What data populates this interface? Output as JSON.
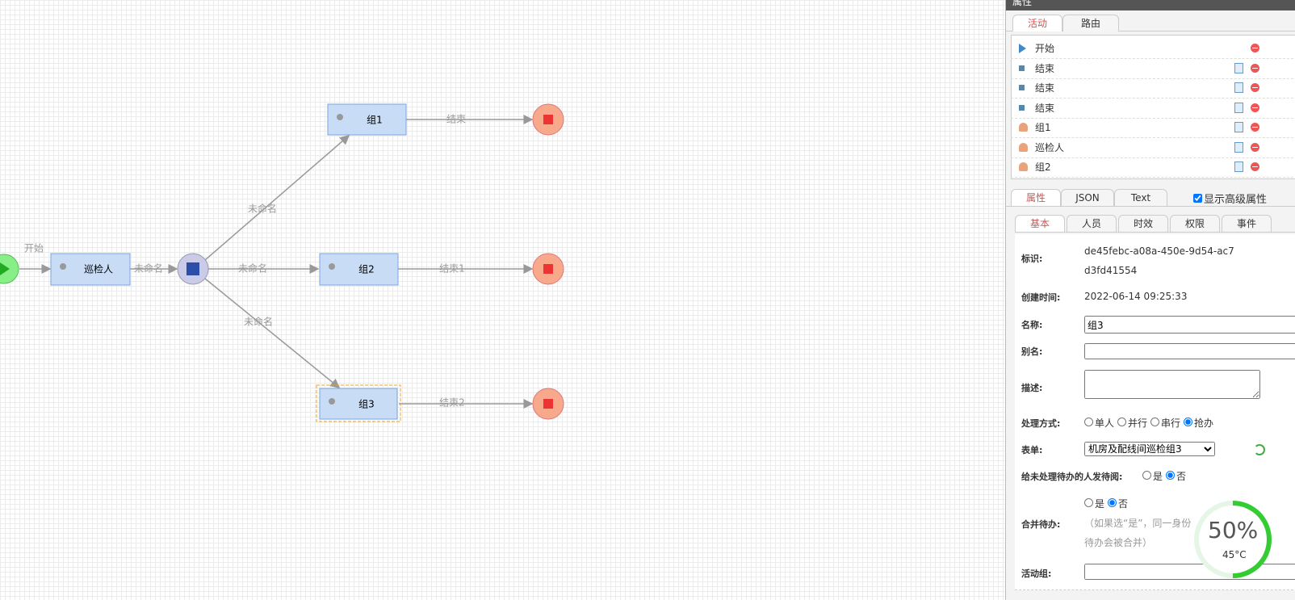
{
  "canvas": {
    "start_label": "开始",
    "nodes": [
      "巡检人",
      "组1",
      "组2",
      "组3"
    ],
    "edge_labels": [
      "未命名",
      "未命名",
      "未命名",
      "未命名",
      "结束",
      "结束1",
      "结束2"
    ]
  },
  "panel": {
    "title": "属性",
    "top_tabs": [
      "活动",
      "路由"
    ],
    "activities": [
      "开始",
      "结束",
      "结束",
      "结束",
      "组1",
      "巡检人",
      "组2"
    ],
    "prop_tabs": [
      "属性",
      "JSON",
      "Text"
    ],
    "advanced_checkbox": "显示高级属性",
    "sub_tabs": [
      "基本",
      "人员",
      "时效",
      "权限",
      "事件"
    ],
    "fields": [
      {
        "label": "标识:",
        "value": "de45febc-a08a-450e-9d54-ac7d3fd41554"
      },
      {
        "label": "创建时间:",
        "value": "2022-06-14 09:25:33"
      },
      {
        "label": "名称:",
        "value": "组3"
      },
      {
        "label": "别名:"
      },
      {
        "label": "描述:"
      },
      {
        "label": "处理方式:",
        "options": [
          "单人",
          "并行",
          "串行",
          "抢办"
        ]
      },
      {
        "label": "表单:",
        "value": "机房及配线间巡检组3"
      },
      {
        "label": "给未处理待办的人发待阅:",
        "options": [
          "是",
          "否"
        ]
      },
      {
        "label": "合并待办:",
        "options": [
          "是",
          "否"
        ],
        "note": [
          "（如果选“是”，同一身份",
          "待办会被合并）"
        ]
      },
      {
        "label": "活动组:"
      }
    ]
  },
  "monitor": {
    "percent": "50%",
    "temperature": "45°C"
  }
}
